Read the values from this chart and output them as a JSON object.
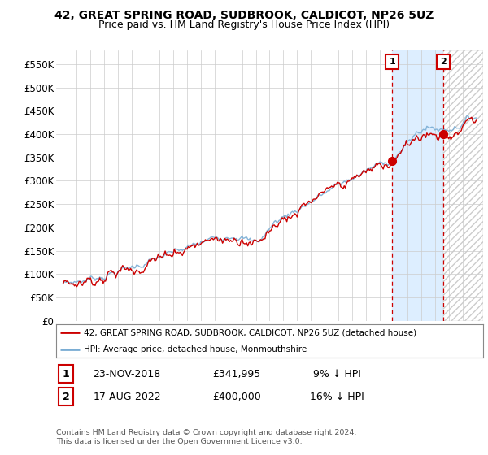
{
  "title": "42, GREAT SPRING ROAD, SUDBROOK, CALDICOT, NP26 5UZ",
  "subtitle": "Price paid vs. HM Land Registry's House Price Index (HPI)",
  "ylabel_ticks": [
    "£0",
    "£50K",
    "£100K",
    "£150K",
    "£200K",
    "£250K",
    "£300K",
    "£350K",
    "£400K",
    "£450K",
    "£500K",
    "£550K"
  ],
  "ytick_values": [
    0,
    50000,
    100000,
    150000,
    200000,
    250000,
    300000,
    350000,
    400000,
    450000,
    500000,
    550000
  ],
  "ylim": [
    0,
    580000
  ],
  "xlim_start": 1994.5,
  "xlim_end": 2025.5,
  "hpi_color": "#7aadd4",
  "price_color": "#cc0000",
  "marker1_date": 2018.9,
  "marker1_price": 341995,
  "marker2_date": 2022.62,
  "marker2_price": 400000,
  "legend_label1": "42, GREAT SPRING ROAD, SUDBROOK, CALDICOT, NP26 5UZ (detached house)",
  "legend_label2": "HPI: Average price, detached house, Monmouthshire",
  "table_row1": [
    "1",
    "23-NOV-2018",
    "£341,995",
    "9% ↓ HPI"
  ],
  "table_row2": [
    "2",
    "17-AUG-2022",
    "£400,000",
    "16% ↓ HPI"
  ],
  "footnote": "Contains HM Land Registry data © Crown copyright and database right 2024.\nThis data is licensed under the Open Government Licence v3.0.",
  "bg_color": "#ffffff",
  "grid_color": "#cccccc",
  "title_fontsize": 10,
  "subtitle_fontsize": 9,
  "shade_color": "#ddeeff",
  "hatch_color": "#cccccc"
}
